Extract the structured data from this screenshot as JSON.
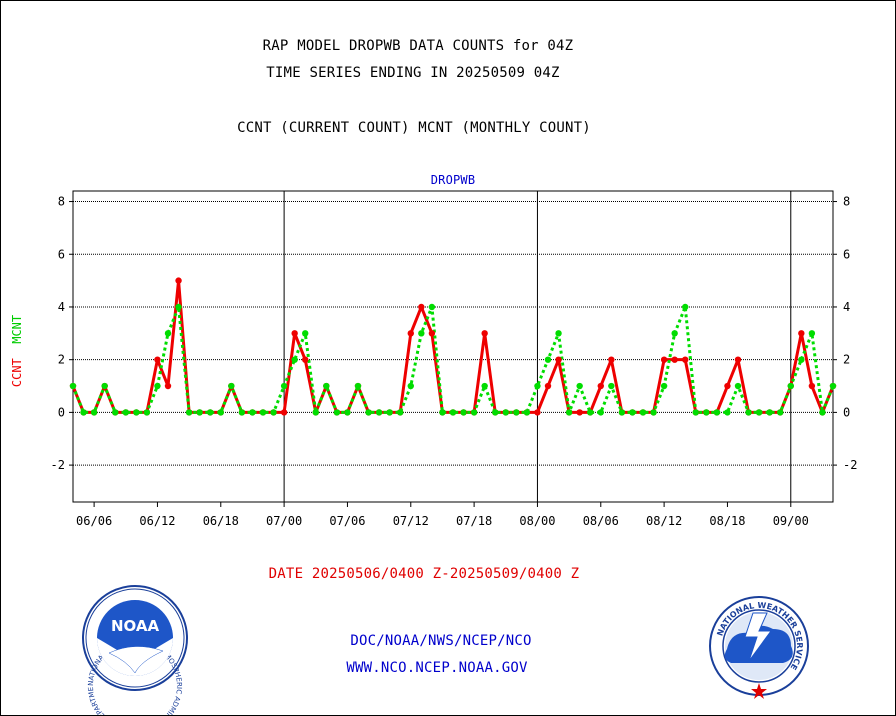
{
  "header": {
    "title_line1": "RAP MODEL DROPWB DATA COUNTS for 04Z",
    "title_line2": "TIME SERIES ENDING IN 20250509 04Z",
    "title_line3": "CCNT (CURRENT COUNT) MCNT (MONTHLY COUNT)"
  },
  "footer": {
    "date_range": "DATE 20250506/0400 Z-20250509/0400 Z",
    "credit_line1": "DOC/NOAA/NWS/NCEP/NCO",
    "credit_line2": "WWW.NCO.NCEP.NOAA.GOV"
  },
  "logos": {
    "left": "noaa-logo",
    "right": "national-weather-service-logo",
    "left_ring_text": "NATIONAL OCEANIC AND ATMOSPHERIC ADMINISTRATION · U.S. DEPARTMENT OF COMMERCE ·",
    "left_center_text": "NOAA",
    "right_ring_text": "NATIONAL WEATHER SERVICE"
  },
  "colors": {
    "ccnt": "#ee0000",
    "mcnt": "#00dd00",
    "panel_title": "#0000cc",
    "date_range": "#e00000",
    "credit": "#0000cc"
  },
  "chart_data": {
    "type": "line",
    "panel_title": "DROPWB",
    "ylabel": {
      "ccnt": "CCNT",
      "mcnt": "MCNT"
    },
    "ylim": [
      -3.4,
      8.4
    ],
    "yticks": [
      -2,
      0,
      2,
      4,
      6,
      8
    ],
    "grid": true,
    "xlim": [
      0,
      72
    ],
    "xtick_labels": [
      "06/06",
      "06/12",
      "06/18",
      "07/00",
      "07/06",
      "07/12",
      "07/18",
      "08/00",
      "08/06",
      "08/12",
      "08/18",
      "09/00"
    ],
    "xtick_positions": [
      2,
      8,
      14,
      20,
      26,
      32,
      38,
      44,
      50,
      56,
      62,
      68
    ],
    "day_boundaries": [
      20,
      44,
      68
    ],
    "x": [
      0,
      1,
      2,
      3,
      4,
      5,
      6,
      7,
      8,
      9,
      10,
      11,
      12,
      13,
      14,
      15,
      16,
      17,
      18,
      19,
      20,
      21,
      22,
      23,
      24,
      25,
      26,
      27,
      28,
      29,
      30,
      31,
      32,
      33,
      34,
      35,
      36,
      37,
      38,
      39,
      40,
      41,
      42,
      43,
      44,
      45,
      46,
      47,
      48,
      49,
      50,
      51,
      52,
      53,
      54,
      55,
      56,
      57,
      58,
      59,
      60,
      61,
      62,
      63,
      64,
      65,
      66,
      67,
      68,
      69,
      70,
      71,
      72
    ],
    "series": [
      {
        "name": "CCNT",
        "color": "#ee0000",
        "values": [
          1,
          0,
          0,
          1,
          0,
          0,
          0,
          0,
          2,
          1,
          5,
          0,
          0,
          0,
          0,
          1,
          0,
          0,
          0,
          0,
          0,
          3,
          2,
          0,
          1,
          0,
          0,
          1,
          0,
          0,
          0,
          0,
          3,
          4,
          3,
          0,
          0,
          0,
          0,
          3,
          0,
          0,
          0,
          0,
          0,
          1,
          2,
          0,
          0,
          0,
          1,
          2,
          0,
          0,
          0,
          0,
          2,
          2,
          2,
          0,
          0,
          0,
          1,
          2,
          0,
          0,
          0,
          0,
          1,
          3,
          1,
          0,
          1
        ]
      },
      {
        "name": "MCNT",
        "color": "#00dd00",
        "values": [
          1,
          0,
          0,
          1,
          0,
          0,
          0,
          0,
          1,
          3,
          4,
          0,
          0,
          0,
          0,
          1,
          0,
          0,
          0,
          0,
          1,
          2,
          3,
          0,
          1,
          0,
          0,
          1,
          0,
          0,
          0,
          0,
          1,
          3,
          4,
          0,
          0,
          0,
          0,
          1,
          0,
          0,
          0,
          0,
          1,
          2,
          3,
          0,
          1,
          0,
          0,
          1,
          0,
          0,
          0,
          0,
          1,
          3,
          4,
          0,
          0,
          0,
          0,
          1,
          0,
          0,
          0,
          0,
          1,
          2,
          3,
          0,
          1
        ]
      }
    ]
  }
}
